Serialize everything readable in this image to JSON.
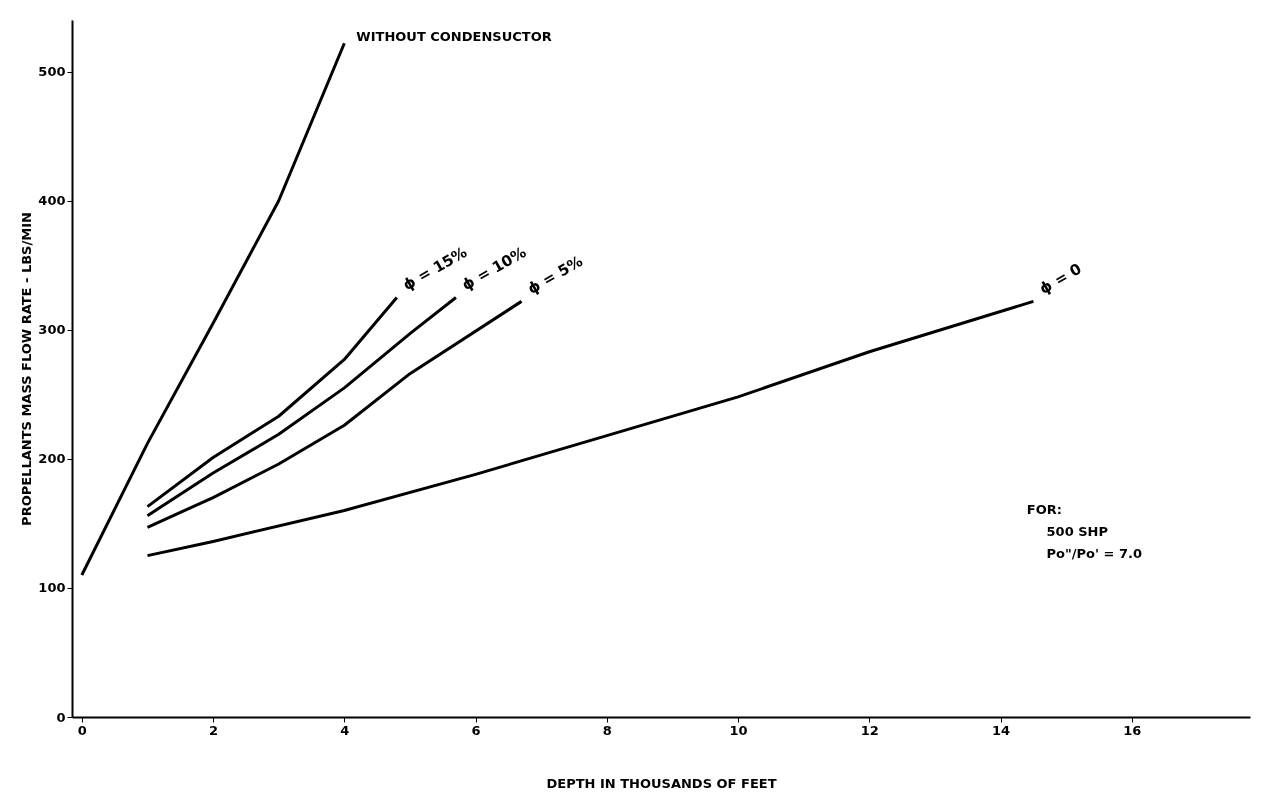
{
  "chart_data": {
    "type": "line",
    "xlabel": "DEPTH IN THOUSANDS OF FEET",
    "ylabel": "PROPELLANTS MASS FLOW RATE - LBS/MIN",
    "xlim": [
      -0.15,
      17.8
    ],
    "xticks": [
      0,
      2,
      4,
      6,
      8,
      10,
      12,
      14,
      16
    ],
    "ylim": [
      0,
      540
    ],
    "yticks": [
      0,
      100,
      200,
      300,
      400,
      500
    ],
    "grid": false,
    "marker": "none",
    "line_style": "solid",
    "series": [
      {
        "name": "WITHOUT CONDENSUCTOR",
        "color": "#000000",
        "x": [
          0,
          1,
          2,
          3,
          4
        ],
        "values": [
          110,
          212,
          305,
          400,
          522
        ]
      },
      {
        "name": "ϕ = 15%",
        "color": "#000000",
        "x": [
          1,
          2,
          3,
          4,
          4.8
        ],
        "values": [
          163,
          201,
          233,
          277,
          325
        ]
      },
      {
        "name": "ϕ = 10%",
        "color": "#000000",
        "x": [
          1,
          2,
          3,
          4,
          5,
          5.7
        ],
        "values": [
          156,
          189,
          219,
          255,
          297,
          325
        ]
      },
      {
        "name": "ϕ = 5%",
        "color": "#000000",
        "x": [
          1,
          2,
          3,
          4,
          5,
          6.7
        ],
        "values": [
          147,
          170,
          196,
          226,
          266,
          322
        ]
      },
      {
        "name": "ϕ = 0",
        "color": "#000000",
        "x": [
          1,
          2,
          4,
          6,
          8,
          10,
          12,
          14.5
        ],
        "values": [
          125,
          136,
          160,
          188,
          218,
          248,
          283,
          322
        ]
      }
    ],
    "annotations": [
      "FOR:",
      "500 SHP",
      "Po\"/Po' = 7.0"
    ]
  }
}
